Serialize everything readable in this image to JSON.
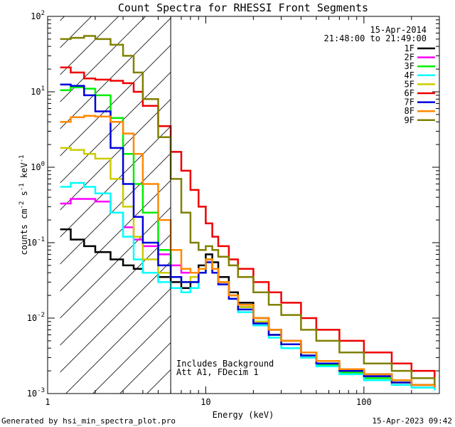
{
  "chart_data": {
    "type": "line",
    "title": "Count Spectra for RHESSI Front Segments",
    "xlabel": "Energy (keV)",
    "ylabel_parts": [
      "counts cm",
      "-2",
      " s",
      "-1",
      " keV",
      "-1"
    ],
    "xscale": "log",
    "yscale": "log",
    "xlim": [
      1,
      300
    ],
    "ylim": [
      0.001,
      100
    ],
    "x_ticks": [
      {
        "value": 1,
        "label": "1"
      },
      {
        "value": 10,
        "label": "10"
      },
      {
        "value": 100,
        "label": "100"
      }
    ],
    "y_ticks": [
      {
        "value": 0.001,
        "base": "10",
        "exp": "-3"
      },
      {
        "value": 0.01,
        "base": "10",
        "exp": "-2"
      },
      {
        "value": 0.1,
        "base": "10",
        "exp": "-1"
      },
      {
        "value": 1,
        "base": "10",
        "exp": "0"
      },
      {
        "value": 10,
        "base": "10",
        "exp": "1"
      },
      {
        "value": 100,
        "base": "10",
        "exp": "2"
      }
    ],
    "date_label": "15-Apr-2014",
    "time_range_label": "21:48:00 to 21:49:00",
    "vertical_marker_x": 6,
    "hatched_region_x": [
      1.2,
      6
    ],
    "annotations": [
      "Includes Background",
      "Att A1, FDecim 1"
    ],
    "footer_left": "Generated by hsi_min_spectra_plot.pro",
    "footer_right": "15-Apr-2023 09:42",
    "series": [
      {
        "name": "1F",
        "color": "#000000",
        "points": [
          [
            1.2,
            0.15
          ],
          [
            1.4,
            0.11
          ],
          [
            1.7,
            0.09
          ],
          [
            2.0,
            0.075
          ],
          [
            2.5,
            0.06
          ],
          [
            3.0,
            0.05
          ],
          [
            3.5,
            0.045
          ],
          [
            4.0,
            0.04
          ],
          [
            5.0,
            0.035
          ],
          [
            6.0,
            0.03
          ],
          [
            7.0,
            0.025
          ],
          [
            8.0,
            0.03
          ],
          [
            9.0,
            0.05
          ],
          [
            10,
            0.07
          ],
          [
            11,
            0.055
          ],
          [
            12,
            0.035
          ],
          [
            14,
            0.022
          ],
          [
            16,
            0.016
          ],
          [
            20,
            0.01
          ],
          [
            25,
            0.007
          ],
          [
            30,
            0.005
          ],
          [
            40,
            0.0035
          ],
          [
            50,
            0.0025
          ],
          [
            70,
            0.002
          ],
          [
            100,
            0.0018
          ],
          [
            150,
            0.0015
          ],
          [
            200,
            0.0013
          ],
          [
            280,
            0.0012
          ]
        ]
      },
      {
        "name": "2F",
        "color": "#ff00ff",
        "points": [
          [
            1.2,
            0.33
          ],
          [
            1.4,
            0.38
          ],
          [
            1.7,
            0.38
          ],
          [
            2.0,
            0.35
          ],
          [
            2.5,
            0.25
          ],
          [
            3.0,
            0.16
          ],
          [
            3.5,
            0.11
          ],
          [
            4.0,
            0.09
          ],
          [
            5.0,
            0.07
          ],
          [
            6.0,
            0.05
          ],
          [
            7.0,
            0.04
          ],
          [
            8.0,
            0.04
          ],
          [
            9.0,
            0.045
          ],
          [
            10,
            0.06
          ],
          [
            11,
            0.045
          ],
          [
            12,
            0.03
          ],
          [
            14,
            0.02
          ],
          [
            16,
            0.014
          ],
          [
            20,
            0.009
          ],
          [
            25,
            0.006
          ],
          [
            30,
            0.0045
          ],
          [
            40,
            0.003
          ],
          [
            50,
            0.0025
          ],
          [
            70,
            0.002
          ],
          [
            100,
            0.0017
          ],
          [
            150,
            0.0014
          ],
          [
            200,
            0.0013
          ],
          [
            280,
            0.0012
          ]
        ]
      },
      {
        "name": "3F",
        "color": "#00ee00",
        "points": [
          [
            1.2,
            10.5
          ],
          [
            1.4,
            11.5
          ],
          [
            1.7,
            11.0
          ],
          [
            2.0,
            9.0
          ],
          [
            2.5,
            4.5
          ],
          [
            3.0,
            1.5
          ],
          [
            3.5,
            0.6
          ],
          [
            4.0,
            0.25
          ],
          [
            5.0,
            0.08
          ],
          [
            6.0,
            0.035
          ],
          [
            7.0,
            0.03
          ],
          [
            8.0,
            0.03
          ],
          [
            9.0,
            0.04
          ],
          [
            10,
            0.06
          ],
          [
            11,
            0.045
          ],
          [
            12,
            0.03
          ],
          [
            14,
            0.02
          ],
          [
            16,
            0.014
          ],
          [
            20,
            0.009
          ],
          [
            25,
            0.006
          ],
          [
            30,
            0.0045
          ],
          [
            40,
            0.003
          ],
          [
            50,
            0.0024
          ],
          [
            70,
            0.0019
          ],
          [
            100,
            0.0016
          ],
          [
            150,
            0.0014
          ],
          [
            200,
            0.0013
          ],
          [
            280,
            0.0012
          ]
        ]
      },
      {
        "name": "4F",
        "color": "#00ffff",
        "points": [
          [
            1.2,
            0.55
          ],
          [
            1.4,
            0.62
          ],
          [
            1.7,
            0.55
          ],
          [
            2.0,
            0.45
          ],
          [
            2.5,
            0.25
          ],
          [
            3.0,
            0.12
          ],
          [
            3.5,
            0.06
          ],
          [
            4.0,
            0.04
          ],
          [
            5.0,
            0.03
          ],
          [
            6.0,
            0.025
          ],
          [
            7.0,
            0.022
          ],
          [
            8.0,
            0.025
          ],
          [
            9.0,
            0.04
          ],
          [
            10,
            0.055
          ],
          [
            11,
            0.04
          ],
          [
            12,
            0.028
          ],
          [
            14,
            0.018
          ],
          [
            16,
            0.012
          ],
          [
            20,
            0.008
          ],
          [
            25,
            0.0055
          ],
          [
            30,
            0.004
          ],
          [
            40,
            0.003
          ],
          [
            50,
            0.0023
          ],
          [
            70,
            0.0018
          ],
          [
            100,
            0.0015
          ],
          [
            150,
            0.0013
          ],
          [
            200,
            0.0012
          ],
          [
            280,
            0.0011
          ]
        ]
      },
      {
        "name": "5F",
        "color": "#cccc00",
        "points": [
          [
            1.2,
            1.8
          ],
          [
            1.4,
            1.7
          ],
          [
            1.7,
            1.5
          ],
          [
            2.0,
            1.3
          ],
          [
            2.5,
            0.7
          ],
          [
            3.0,
            0.3
          ],
          [
            3.5,
            0.12
          ],
          [
            4.0,
            0.06
          ],
          [
            5.0,
            0.04
          ],
          [
            6.0,
            0.035
          ],
          [
            7.0,
            0.03
          ],
          [
            8.0,
            0.035
          ],
          [
            9.0,
            0.045
          ],
          [
            10,
            0.06
          ],
          [
            11,
            0.045
          ],
          [
            12,
            0.03
          ],
          [
            14,
            0.02
          ],
          [
            16,
            0.014
          ],
          [
            20,
            0.009
          ],
          [
            25,
            0.006
          ],
          [
            30,
            0.0045
          ],
          [
            40,
            0.0032
          ],
          [
            50,
            0.0025
          ],
          [
            70,
            0.002
          ],
          [
            100,
            0.0017
          ],
          [
            150,
            0.0014
          ],
          [
            200,
            0.0013
          ],
          [
            280,
            0.0012
          ]
        ]
      },
      {
        "name": "6F",
        "color": "#ee0000",
        "points": [
          [
            1.2,
            21
          ],
          [
            1.4,
            18
          ],
          [
            1.7,
            15
          ],
          [
            2.0,
            14.5
          ],
          [
            2.5,
            14
          ],
          [
            3.0,
            13
          ],
          [
            3.5,
            10
          ],
          [
            4.0,
            6.5
          ],
          [
            5.0,
            3.5
          ],
          [
            6.0,
            1.6
          ],
          [
            7.0,
            0.9
          ],
          [
            8.0,
            0.5
          ],
          [
            9.0,
            0.3
          ],
          [
            10,
            0.18
          ],
          [
            11,
            0.12
          ],
          [
            12,
            0.09
          ],
          [
            14,
            0.06
          ],
          [
            16,
            0.045
          ],
          [
            20,
            0.03
          ],
          [
            25,
            0.022
          ],
          [
            30,
            0.016
          ],
          [
            40,
            0.01
          ],
          [
            50,
            0.007
          ],
          [
            70,
            0.005
          ],
          [
            100,
            0.0035
          ],
          [
            150,
            0.0025
          ],
          [
            200,
            0.002
          ],
          [
            280,
            0.0015
          ]
        ]
      },
      {
        "name": "7F",
        "color": "#0000dd",
        "points": [
          [
            1.2,
            12.5
          ],
          [
            1.4,
            12.0
          ],
          [
            1.7,
            9.0
          ],
          [
            2.0,
            5.5
          ],
          [
            2.5,
            1.8
          ],
          [
            3.0,
            0.6
          ],
          [
            3.5,
            0.22
          ],
          [
            4.0,
            0.1
          ],
          [
            5.0,
            0.05
          ],
          [
            6.0,
            0.035
          ],
          [
            7.0,
            0.03
          ],
          [
            8.0,
            0.03
          ],
          [
            9.0,
            0.04
          ],
          [
            10,
            0.055
          ],
          [
            11,
            0.04
          ],
          [
            12,
            0.028
          ],
          [
            14,
            0.018
          ],
          [
            16,
            0.013
          ],
          [
            20,
            0.0085
          ],
          [
            25,
            0.006
          ],
          [
            30,
            0.0045
          ],
          [
            40,
            0.0032
          ],
          [
            50,
            0.0025
          ],
          [
            70,
            0.002
          ],
          [
            100,
            0.0017
          ],
          [
            150,
            0.0014
          ],
          [
            200,
            0.0013
          ],
          [
            280,
            0.0012
          ]
        ]
      },
      {
        "name": "8F",
        "color": "#ff8800",
        "points": [
          [
            1.2,
            4.0
          ],
          [
            1.4,
            4.6
          ],
          [
            1.7,
            4.8
          ],
          [
            2.0,
            4.7
          ],
          [
            2.5,
            4.0
          ],
          [
            3.0,
            2.8
          ],
          [
            3.5,
            1.5
          ],
          [
            4.0,
            0.6
          ],
          [
            5.0,
            0.2
          ],
          [
            6.0,
            0.08
          ],
          [
            7.0,
            0.045
          ],
          [
            8.0,
            0.04
          ],
          [
            9.0,
            0.045
          ],
          [
            10,
            0.06
          ],
          [
            11,
            0.045
          ],
          [
            12,
            0.03
          ],
          [
            14,
            0.02
          ],
          [
            16,
            0.015
          ],
          [
            20,
            0.01
          ],
          [
            25,
            0.007
          ],
          [
            30,
            0.005
          ],
          [
            40,
            0.0035
          ],
          [
            50,
            0.0027
          ],
          [
            70,
            0.0021
          ],
          [
            100,
            0.0018
          ],
          [
            150,
            0.0015
          ],
          [
            200,
            0.0013
          ],
          [
            280,
            0.0012
          ]
        ]
      },
      {
        "name": "9F",
        "color": "#808000",
        "points": [
          [
            1.2,
            50
          ],
          [
            1.4,
            52
          ],
          [
            1.7,
            55
          ],
          [
            2.0,
            50
          ],
          [
            2.5,
            42
          ],
          [
            3.0,
            30
          ],
          [
            3.5,
            18
          ],
          [
            4.0,
            8
          ],
          [
            5.0,
            2.5
          ],
          [
            6.0,
            0.7
          ],
          [
            7.0,
            0.25
          ],
          [
            8.0,
            0.1
          ],
          [
            9.0,
            0.08
          ],
          [
            10,
            0.09
          ],
          [
            11,
            0.08
          ],
          [
            12,
            0.065
          ],
          [
            14,
            0.05
          ],
          [
            16,
            0.035
          ],
          [
            20,
            0.022
          ],
          [
            25,
            0.015
          ],
          [
            30,
            0.011
          ],
          [
            40,
            0.007
          ],
          [
            50,
            0.005
          ],
          [
            70,
            0.0035
          ],
          [
            100,
            0.0025
          ],
          [
            150,
            0.002
          ],
          [
            200,
            0.0016
          ],
          [
            280,
            0.0013
          ]
        ]
      }
    ]
  }
}
